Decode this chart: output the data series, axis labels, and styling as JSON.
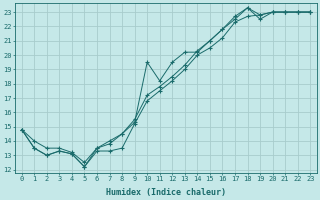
{
  "xlabel": "Humidex (Indice chaleur)",
  "ylabel": "",
  "bg_color": "#c5e8e8",
  "grid_color": "#a8cccc",
  "line_color": "#1a6b6b",
  "xlim": [
    -0.5,
    23.5
  ],
  "ylim": [
    11.8,
    23.6
  ],
  "xticks": [
    0,
    1,
    2,
    3,
    4,
    5,
    6,
    7,
    8,
    9,
    10,
    11,
    12,
    13,
    14,
    15,
    16,
    17,
    18,
    19,
    20,
    21,
    22,
    23
  ],
  "yticks": [
    12,
    13,
    14,
    15,
    16,
    17,
    18,
    19,
    20,
    21,
    22,
    23
  ],
  "line1_x": [
    0,
    1,
    2,
    3,
    4,
    5,
    6,
    7,
    8,
    9,
    10,
    11,
    12,
    13,
    14,
    15,
    16,
    17,
    18,
    19,
    20,
    21,
    22,
    23
  ],
  "line1_y": [
    14.8,
    13.5,
    13.0,
    13.3,
    13.1,
    12.2,
    13.3,
    13.3,
    13.5,
    15.2,
    16.8,
    17.5,
    18.2,
    19.0,
    20.0,
    20.5,
    21.2,
    22.3,
    22.7,
    22.8,
    23.0,
    23.0,
    23.0,
    23.0
  ],
  "line2_x": [
    0,
    1,
    2,
    3,
    4,
    5,
    6,
    7,
    8,
    9,
    10,
    11,
    12,
    13,
    14,
    15,
    16,
    17,
    18,
    19,
    20,
    21,
    22,
    23
  ],
  "line2_y": [
    14.8,
    13.5,
    13.0,
    13.3,
    13.1,
    12.2,
    13.5,
    13.8,
    14.5,
    15.3,
    19.5,
    18.2,
    19.5,
    20.2,
    20.2,
    21.0,
    21.8,
    22.5,
    23.3,
    22.5,
    23.0,
    23.0,
    23.0,
    23.0
  ],
  "line3_x": [
    0,
    1,
    2,
    3,
    4,
    5,
    6,
    7,
    8,
    9,
    10,
    11,
    12,
    13,
    14,
    15,
    16,
    17,
    18,
    19,
    20,
    21,
    22,
    23
  ],
  "line3_y": [
    14.8,
    14.0,
    13.5,
    13.5,
    13.2,
    12.5,
    13.5,
    14.0,
    14.5,
    15.5,
    17.2,
    17.8,
    18.5,
    19.3,
    20.3,
    21.0,
    21.8,
    22.7,
    23.3,
    22.8,
    23.0,
    23.0,
    23.0,
    23.0
  ]
}
